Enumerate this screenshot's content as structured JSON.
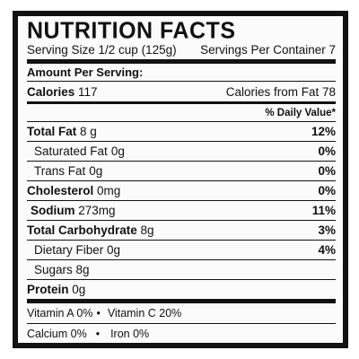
{
  "title": "NUTRITION FACTS",
  "serving": {
    "size": "Serving Size 1/2 cup (125g)",
    "per_container": "Servings Per Container 7"
  },
  "amount_per_serving": "Amount Per Serving:",
  "calories": {
    "label": "Calories",
    "value": "117",
    "from_fat": "Calories from Fat 78"
  },
  "daily_value_header": "% Daily Value*",
  "nutrients": {
    "total_fat": {
      "label": "Total Fat",
      "amount": "8 g",
      "dv": "12%"
    },
    "saturated_fat": {
      "label": "Saturated Fat",
      "amount": "0g",
      "dv": "0%"
    },
    "trans_fat": {
      "label": "Trans Fat",
      "amount": "0g",
      "dv": "0%"
    },
    "cholesterol": {
      "label": "Cholesterol",
      "amount": "0mg",
      "dv": "0%"
    },
    "sodium": {
      "label": "Sodium",
      "amount": "273mg",
      "dv": "11%"
    },
    "total_carb": {
      "label": "Total Carbohydrate",
      "amount": "8g",
      "dv": "3%"
    },
    "dietary_fiber": {
      "label": "Dietary Fiber",
      "amount": "0g",
      "dv": "4%"
    },
    "sugars": {
      "label": "Sugars",
      "amount": "8g"
    },
    "protein": {
      "label": "Protein",
      "amount": "0g"
    }
  },
  "vitamins": {
    "vitamin_a": "Vitamin A 0%",
    "vitamin_c": "Vitamin C 20%",
    "calcium": "Calcium 0%",
    "iron": "Iron 0%",
    "separator": "•"
  }
}
